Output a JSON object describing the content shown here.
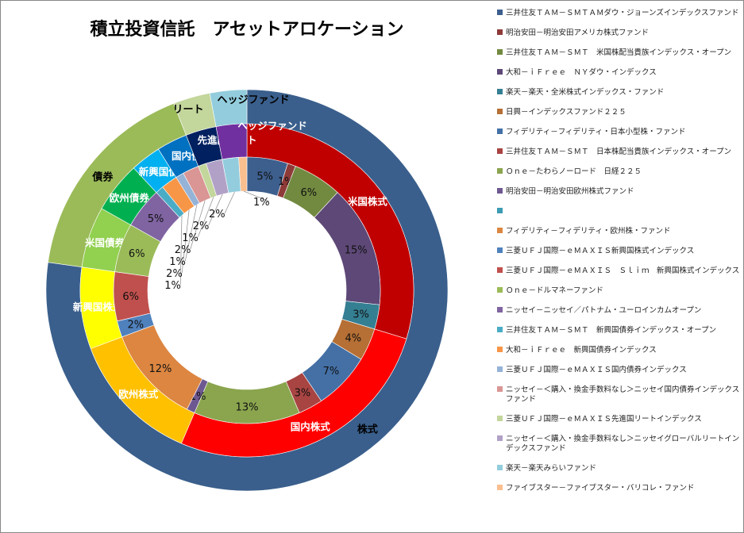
{
  "chart_data": {
    "type": "pie",
    "subtype": "multi-level donut",
    "title": "積立投資信託　アセットアロケーション",
    "legend_position": "right",
    "inner_ring": [
      {
        "name": "三井住友ＴＡＭ－ＳＭＴＡＭダウ・ジョーンズインデックスファンド",
        "value": 5,
        "label": "5%",
        "color": "#3d5f8e"
      },
      {
        "name": "明治安田－明治安田アメリカ株式ファンド",
        "value": 1,
        "label": "1%",
        "color": "#8e3a38"
      },
      {
        "name": "三井住友ＴＡＭ－ＳＭＴ　米国株配当貴族インデックス・オープン",
        "value": 6,
        "label": "6%",
        "color": "#728a40"
      },
      {
        "name": "大和－ｉＦｒｅｅ　ＮＹダウ・インデックス",
        "value": 15,
        "label": "15%",
        "color": "#5d4877"
      },
      {
        "name": "楽天－楽天・全米株式インデックス・ファンド",
        "value": 3,
        "label": "3%",
        "color": "#357f93"
      },
      {
        "name": "日興－インデックスファンド２２５",
        "value": 4,
        "label": "4%",
        "color": "#b66f34"
      },
      {
        "name": "フィデリティ－フィデリティ・日本小型株・ファンド",
        "value": 7,
        "label": "7%",
        "color": "#4470a6"
      },
      {
        "name": "三井住友ＴＡＭ－ＳＭＴ　日本株配当貴族インデックス・オープン",
        "value": 3,
        "label": "3%",
        "color": "#a84442"
      },
      {
        "name": "Ｏｎｅ－たわらノーロード　日経２２５",
        "value": 13,
        "label": "13%",
        "color": "#8aa54e"
      },
      {
        "name": "明治安田－明治安田欧州株式ファンド",
        "value": 1,
        "label": "1%",
        "color": "#6e5891"
      },
      {
        "name": "",
        "value": 0,
        "label": "",
        "color": "#3d9bb4"
      },
      {
        "name": "フィデリティ－フィデリティ・欧州株・ファンド",
        "value": 12,
        "label": "12%",
        "color": "#dc8641"
      },
      {
        "name": "三菱ＵＦＪ国際－ｅＭＡＸＩＳ新興国株式インデックス",
        "value": 2,
        "label": "2%",
        "color": "#4f81bd"
      },
      {
        "name": "三菱ＵＦＪ国際－ｅＭＡＸＩＳ　Ｓｌｉｍ　新興国株式インデックス",
        "value": 6,
        "label": "6%",
        "color": "#c0504d"
      },
      {
        "name": "Ｏｎｅ－ドルマネーファンド",
        "value": 6,
        "label": "6%",
        "color": "#9bbb59"
      },
      {
        "name": "ニッセイ－ニッセイ／パトナム・ユーロインカムオープン",
        "value": 5,
        "label": "5%",
        "color": "#8064a2"
      },
      {
        "name": "三井住友ＴＡＭ－ＳＭＴ　新興国債券インデックス・オープン",
        "value": 1,
        "label": "1%",
        "color": "#4bacc6"
      },
      {
        "name": "大和－ｉＦｒｅｅ　新興国債券インデックス",
        "value": 2,
        "label": "2%",
        "color": "#f79646"
      },
      {
        "name": "三菱ＵＦＪ国際－ｅＭＡＸＩＳ国内債券インデックス",
        "value": 1,
        "label": "1%",
        "color": "#95b3d7"
      },
      {
        "name": "ニッセイ－＜購入・換金手数料なし＞ニッセイ国内債券インデックスファンド",
        "value": 2,
        "label": "2%",
        "color": "#d99694"
      },
      {
        "name": "三菱ＵＦＪ国際－ｅＭＡＸＩＳ先進国リートインデックス",
        "value": 1,
        "label": "1%",
        "color": "#c3d69b"
      },
      {
        "name": "ニッセイ－＜購入・換金手数料なし＞ニッセイグローバルリートインデックスファンド",
        "value": 2,
        "label": "2%",
        "color": "#b2a1c7"
      },
      {
        "name": "楽天－楽天みらいファンド",
        "value": 2,
        "label": "2%",
        "color": "#93cddd"
      },
      {
        "name": "ファイブスター－ファイブスター・バリコレ・ファンド",
        "value": 1,
        "label": "1%",
        "color": "#fabf8f"
      }
    ],
    "middle_ring": [
      {
        "name": "米国株式",
        "value": 30,
        "color": "#c00000"
      },
      {
        "name": "国内株式",
        "value": 27,
        "color": "#ff0000"
      },
      {
        "name": "欧州株式",
        "value": 13,
        "color": "#ffc000"
      },
      {
        "name": "新興国株式",
        "value": 8,
        "color": "#ffff00"
      },
      {
        "name": "米国債券",
        "value": 6,
        "color": "#92d050"
      },
      {
        "name": "欧州債券",
        "value": 5,
        "color": "#00b050"
      },
      {
        "name": "新興国債券",
        "value": 3,
        "color": "#00b0f0"
      },
      {
        "name": "国内債券",
        "value": 3,
        "color": "#0070c0"
      },
      {
        "name": "先進国リート",
        "value": 3,
        "color": "#002060"
      },
      {
        "name": "ヘッジファンド",
        "value": 3,
        "color": "#7030a0"
      }
    ],
    "outer_ring": [
      {
        "name": "株式",
        "value": 78,
        "color": "#3a5f8c"
      },
      {
        "name": "債券",
        "value": 17,
        "color": "#9bbb59"
      },
      {
        "name": "リート",
        "value": 3,
        "color": "#c3d69b"
      },
      {
        "name": "ヘッジファンド",
        "value": 3,
        "color": "#93cddd"
      }
    ]
  }
}
